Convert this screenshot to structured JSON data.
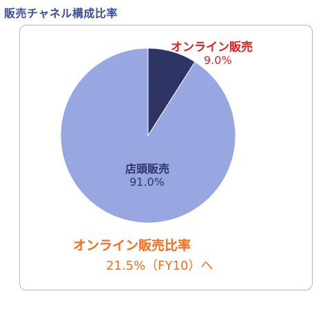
{
  "page_title": "販売チャネル構成比率",
  "chart_data": {
    "type": "pie",
    "title": "",
    "slices": [
      {
        "label": "オンライン販売",
        "value": 9.0,
        "display": "9.0%",
        "color": "#2e3464"
      },
      {
        "label": "店頭販売",
        "value": 91.0,
        "display": "91.0%",
        "color": "#98a6e2"
      }
    ],
    "start_angle_deg": 0,
    "direction": "clockwise",
    "legend": "none"
  },
  "note": {
    "label": "オンライン販売比率",
    "value": "21.5%（FY10）へ"
  },
  "colors": {
    "title": "#3a4fa0",
    "online_label": "#e01e1e",
    "store_label": "#2d3468",
    "note": "#ff6a14"
  }
}
